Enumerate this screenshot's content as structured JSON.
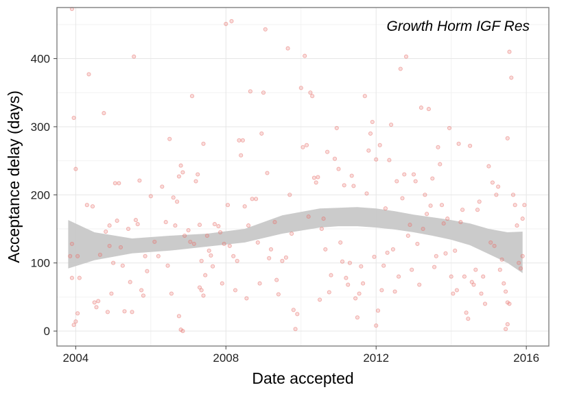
{
  "chart_data": {
    "type": "scatter",
    "title": "",
    "annotation": "Growth Horm IGF Res",
    "xlabel": "Date accepted",
    "ylabel": "Acceptance delay (days)",
    "xlim": [
      2003.5,
      2016.6
    ],
    "ylim": [
      -22,
      475
    ],
    "x_ticks": [
      2004,
      2008,
      2012,
      2016
    ],
    "x_tick_labels": [
      "2004",
      "2008",
      "2012",
      "2016"
    ],
    "y_ticks": [
      0,
      100,
      200,
      300,
      400
    ],
    "y_tick_labels": [
      "0",
      "100",
      "200",
      "300",
      "400"
    ],
    "grid": true,
    "point_color": "#e8736e",
    "band_color": "#c8c8c8",
    "smooth_fit": {
      "x": [
        2003.8,
        2004.5,
        2005.5,
        2006.5,
        2007.5,
        2008.5,
        2009.5,
        2010.5,
        2011.0,
        2011.5,
        2012.0,
        2012.5,
        2013.0,
        2013.5,
        2014.0,
        2014.5,
        2015.0,
        2015.5,
        2015.9
      ],
      "lower": [
        92,
        104,
        114,
        118,
        124,
        130,
        143,
        152,
        154,
        154,
        152,
        149,
        145,
        140,
        134,
        126,
        113,
        100,
        85
      ],
      "upper": [
        163,
        145,
        136,
        140,
        143,
        150,
        170,
        180,
        181,
        182,
        180,
        176,
        171,
        167,
        163,
        158,
        150,
        145,
        146
      ]
    },
    "points": [
      [
        2003.9,
        473
      ],
      [
        2003.95,
        313
      ],
      [
        2004.0,
        238
      ],
      [
        2003.85,
        110
      ],
      [
        2003.9,
        78
      ],
      [
        2004.05,
        110
      ],
      [
        2003.9,
        128
      ],
      [
        2004.1,
        78
      ],
      [
        2003.95,
        9
      ],
      [
        2004.05,
        26
      ],
      [
        2004.0,
        14
      ],
      [
        2004.35,
        377
      ],
      [
        2004.3,
        185
      ],
      [
        2004.45,
        183
      ],
      [
        2004.5,
        42
      ],
      [
        2004.6,
        44
      ],
      [
        2004.55,
        35
      ],
      [
        2004.65,
        112
      ],
      [
        2004.75,
        320
      ],
      [
        2004.8,
        146
      ],
      [
        2004.9,
        155
      ],
      [
        2004.95,
        55
      ],
      [
        2004.85,
        28
      ],
      [
        2004.9,
        125
      ],
      [
        2005.0,
        100
      ],
      [
        2005.05,
        217
      ],
      [
        2005.15,
        217
      ],
      [
        2005.1,
        162
      ],
      [
        2005.2,
        123
      ],
      [
        2005.25,
        96
      ],
      [
        2005.3,
        29
      ],
      [
        2005.4,
        150
      ],
      [
        2005.45,
        72
      ],
      [
        2005.5,
        28
      ],
      [
        2005.55,
        403
      ],
      [
        2005.6,
        163
      ],
      [
        2005.65,
        157
      ],
      [
        2005.7,
        221
      ],
      [
        2005.75,
        60
      ],
      [
        2005.8,
        52
      ],
      [
        2005.85,
        110
      ],
      [
        2005.9,
        88
      ],
      [
        2006.0,
        198
      ],
      [
        2006.1,
        131
      ],
      [
        2006.2,
        110
      ],
      [
        2006.3,
        212
      ],
      [
        2006.4,
        160
      ],
      [
        2006.45,
        96
      ],
      [
        2006.5,
        282
      ],
      [
        2006.55,
        55
      ],
      [
        2006.6,
        196
      ],
      [
        2006.65,
        155
      ],
      [
        2006.7,
        190
      ],
      [
        2006.75,
        227
      ],
      [
        2006.8,
        243
      ],
      [
        2006.85,
        233
      ],
      [
        2006.75,
        22
      ],
      [
        2006.8,
        2
      ],
      [
        2006.85,
        0
      ],
      [
        2006.9,
        140
      ],
      [
        2007.0,
        148
      ],
      [
        2007.05,
        131
      ],
      [
        2007.1,
        345
      ],
      [
        2007.15,
        128
      ],
      [
        2007.2,
        220
      ],
      [
        2007.25,
        230
      ],
      [
        2007.3,
        156
      ],
      [
        2007.35,
        103
      ],
      [
        2007.4,
        275
      ],
      [
        2007.3,
        64
      ],
      [
        2007.35,
        60
      ],
      [
        2007.4,
        52
      ],
      [
        2007.45,
        82
      ],
      [
        2007.5,
        140
      ],
      [
        2007.55,
        118
      ],
      [
        2007.6,
        111
      ],
      [
        2007.65,
        95
      ],
      [
        2007.7,
        157
      ],
      [
        2007.8,
        154
      ],
      [
        2007.85,
        145
      ],
      [
        2007.9,
        70
      ],
      [
        2007.95,
        128
      ],
      [
        2008.0,
        451
      ],
      [
        2008.05,
        185
      ],
      [
        2008.1,
        125
      ],
      [
        2008.15,
        455
      ],
      [
        2008.2,
        110
      ],
      [
        2008.25,
        60
      ],
      [
        2008.3,
        103
      ],
      [
        2008.35,
        280
      ],
      [
        2008.4,
        258
      ],
      [
        2008.45,
        280
      ],
      [
        2008.5,
        183
      ],
      [
        2008.55,
        48
      ],
      [
        2008.6,
        155
      ],
      [
        2008.65,
        352
      ],
      [
        2008.7,
        194
      ],
      [
        2008.8,
        194
      ],
      [
        2008.85,
        130
      ],
      [
        2008.9,
        70
      ],
      [
        2008.95,
        290
      ],
      [
        2009.0,
        350
      ],
      [
        2009.05,
        443
      ],
      [
        2009.1,
        232
      ],
      [
        2009.15,
        107
      ],
      [
        2009.2,
        120
      ],
      [
        2009.3,
        160
      ],
      [
        2009.35,
        75
      ],
      [
        2009.4,
        54
      ],
      [
        2009.5,
        103
      ],
      [
        2009.6,
        108
      ],
      [
        2009.65,
        415
      ],
      [
        2009.7,
        200
      ],
      [
        2009.75,
        143
      ],
      [
        2009.8,
        31
      ],
      [
        2009.85,
        3
      ],
      [
        2009.9,
        25
      ],
      [
        2010.0,
        357
      ],
      [
        2010.05,
        270
      ],
      [
        2010.1,
        404
      ],
      [
        2010.15,
        273
      ],
      [
        2010.2,
        168
      ],
      [
        2010.25,
        350
      ],
      [
        2010.3,
        345
      ],
      [
        2010.35,
        225
      ],
      [
        2010.4,
        218
      ],
      [
        2010.45,
        226
      ],
      [
        2010.5,
        46
      ],
      [
        2010.55,
        150
      ],
      [
        2010.6,
        165
      ],
      [
        2010.65,
        120
      ],
      [
        2010.7,
        263
      ],
      [
        2010.75,
        57
      ],
      [
        2010.8,
        82
      ],
      [
        2010.9,
        253
      ],
      [
        2010.95,
        298
      ],
      [
        2011.0,
        238
      ],
      [
        2011.05,
        130
      ],
      [
        2011.1,
        102
      ],
      [
        2011.15,
        214
      ],
      [
        2011.2,
        78
      ],
      [
        2011.25,
        68
      ],
      [
        2011.3,
        100
      ],
      [
        2011.35,
        228
      ],
      [
        2011.4,
        213
      ],
      [
        2011.45,
        48
      ],
      [
        2011.5,
        20
      ],
      [
        2011.55,
        55
      ],
      [
        2011.6,
        95
      ],
      [
        2011.65,
        70
      ],
      [
        2011.7,
        345
      ],
      [
        2011.75,
        202
      ],
      [
        2011.8,
        265
      ],
      [
        2011.85,
        290
      ],
      [
        2011.9,
        307
      ],
      [
        2011.95,
        109
      ],
      [
        2012.0,
        252
      ],
      [
        2012.0,
        8
      ],
      [
        2012.05,
        30
      ],
      [
        2012.1,
        273
      ],
      [
        2012.15,
        60
      ],
      [
        2012.2,
        96
      ],
      [
        2012.25,
        180
      ],
      [
        2012.3,
        115
      ],
      [
        2012.35,
        251
      ],
      [
        2012.4,
        303
      ],
      [
        2012.45,
        120
      ],
      [
        2012.5,
        58
      ],
      [
        2012.55,
        220
      ],
      [
        2012.6,
        80
      ],
      [
        2012.65,
        385
      ],
      [
        2012.7,
        195
      ],
      [
        2012.75,
        230
      ],
      [
        2012.8,
        403
      ],
      [
        2012.85,
        140
      ],
      [
        2012.9,
        156
      ],
      [
        2012.95,
        90
      ],
      [
        2013.0,
        230
      ],
      [
        2013.05,
        220
      ],
      [
        2013.1,
        128
      ],
      [
        2013.15,
        68
      ],
      [
        2013.2,
        328
      ],
      [
        2013.25,
        150
      ],
      [
        2013.3,
        200
      ],
      [
        2013.35,
        172
      ],
      [
        2013.4,
        326
      ],
      [
        2013.45,
        184
      ],
      [
        2013.5,
        224
      ],
      [
        2013.55,
        94
      ],
      [
        2013.6,
        110
      ],
      [
        2013.65,
        270
      ],
      [
        2013.7,
        245
      ],
      [
        2013.75,
        185
      ],
      [
        2013.8,
        158
      ],
      [
        2013.85,
        114
      ],
      [
        2013.9,
        165
      ],
      [
        2013.95,
        298
      ],
      [
        2014.0,
        80
      ],
      [
        2014.05,
        55
      ],
      [
        2014.1,
        118
      ],
      [
        2014.15,
        60
      ],
      [
        2014.2,
        275
      ],
      [
        2014.25,
        160
      ],
      [
        2014.3,
        178
      ],
      [
        2014.35,
        80
      ],
      [
        2014.4,
        27
      ],
      [
        2014.45,
        18
      ],
      [
        2014.5,
        272
      ],
      [
        2014.55,
        72
      ],
      [
        2014.6,
        68
      ],
      [
        2014.65,
        90
      ],
      [
        2014.7,
        178
      ],
      [
        2014.75,
        190
      ],
      [
        2014.8,
        55
      ],
      [
        2014.85,
        80
      ],
      [
        2014.9,
        40
      ],
      [
        2015.0,
        242
      ],
      [
        2015.05,
        130
      ],
      [
        2015.1,
        218
      ],
      [
        2015.15,
        125
      ],
      [
        2015.2,
        200
      ],
      [
        2015.25,
        212
      ],
      [
        2015.3,
        90
      ],
      [
        2015.35,
        105
      ],
      [
        2015.4,
        70
      ],
      [
        2015.45,
        58
      ],
      [
        2015.5,
        283
      ],
      [
        2015.55,
        410
      ],
      [
        2015.6,
        372
      ],
      [
        2015.65,
        200
      ],
      [
        2015.7,
        185
      ],
      [
        2015.75,
        155
      ],
      [
        2015.8,
        100
      ],
      [
        2015.85,
        92
      ],
      [
        2015.9,
        110
      ],
      [
        2015.95,
        185
      ],
      [
        2015.9,
        165
      ],
      [
        2015.5,
        42
      ],
      [
        2015.55,
        40
      ],
      [
        2015.45,
        3
      ],
      [
        2015.5,
        10
      ]
    ]
  }
}
